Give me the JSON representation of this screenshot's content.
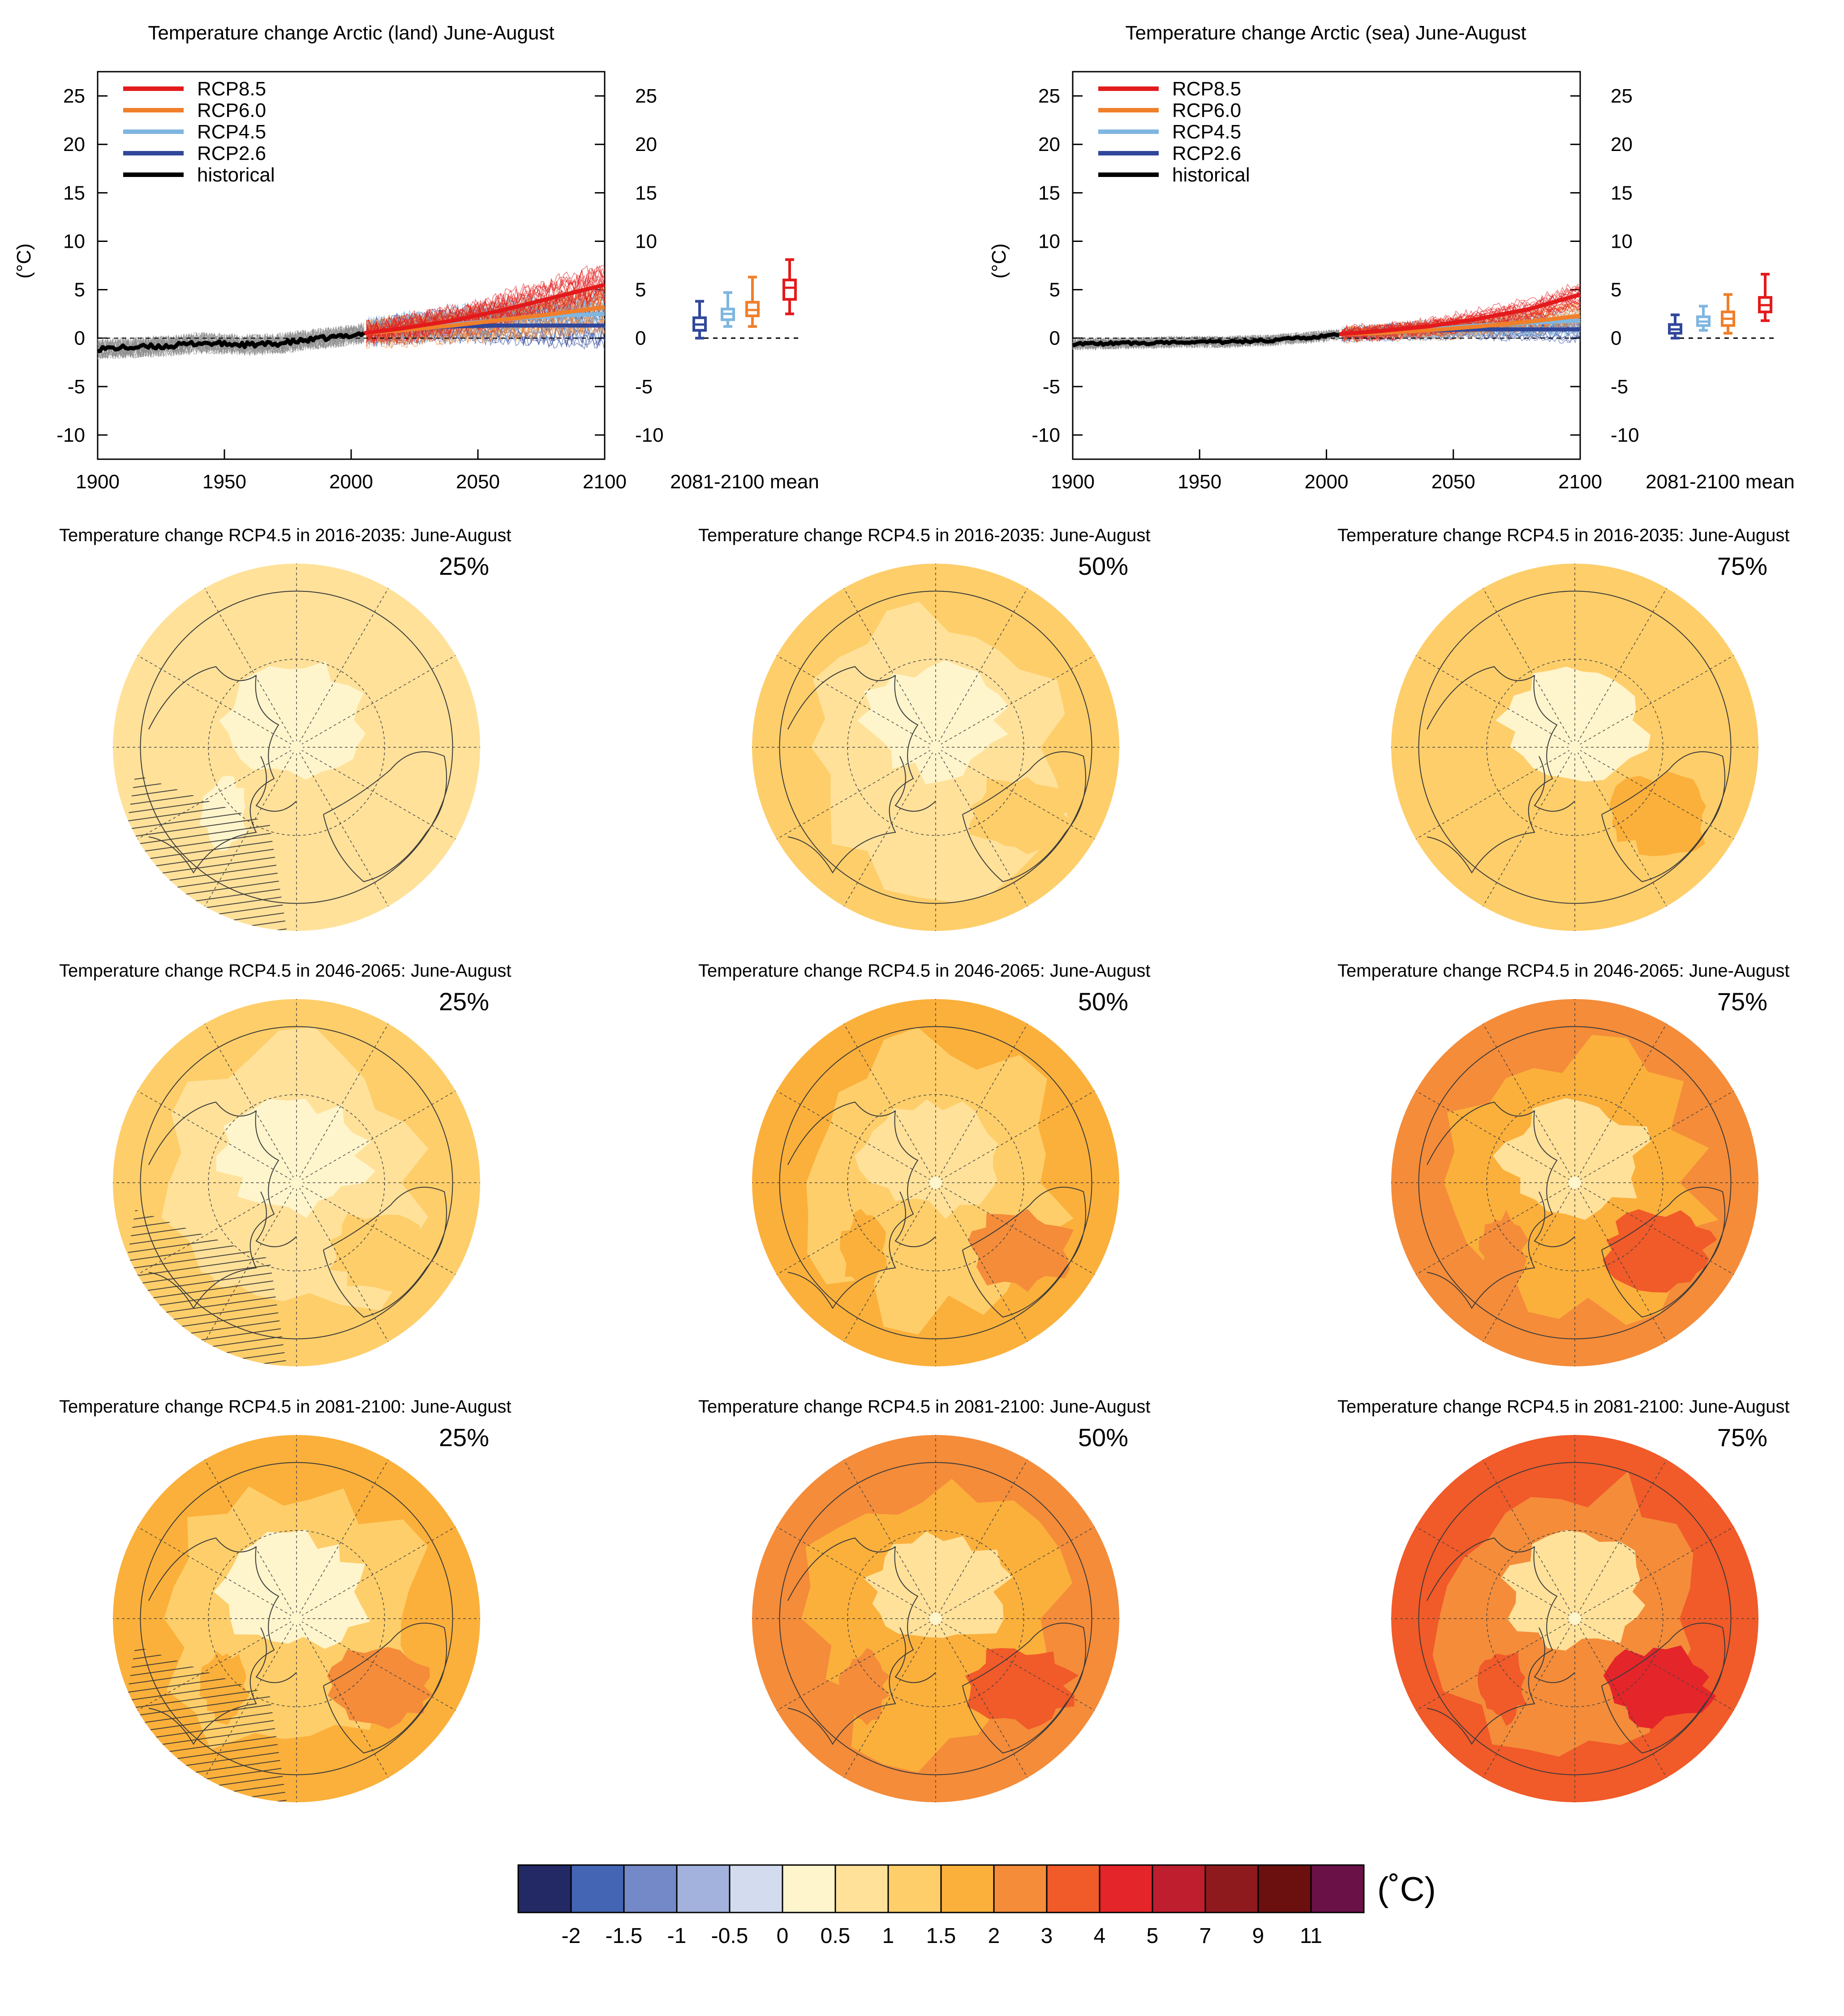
{
  "colors": {
    "rcp85": "#e31a1c",
    "rcp60": "#f07f2a",
    "rcp45": "#7fb6e0",
    "rcp26": "#31479a",
    "historical": "#000000",
    "ensemble_historical": "#8c8c8c",
    "coast": "#3a3a3a"
  },
  "chart_data": [
    {
      "type": "line",
      "title": "Temperature change Arctic (land) June-August",
      "ylabel": "(°C)",
      "xlim": [
        1900,
        2100
      ],
      "ylim": [
        -12.5,
        27.5
      ],
      "x_ticks": [
        "1900",
        "1950",
        "2000",
        "2050",
        "2100"
      ],
      "y_ticks": [
        "25",
        "20",
        "15",
        "10",
        "5",
        "0",
        "-5",
        "-10"
      ],
      "legend_position": "top-left",
      "legend": [
        "RCP8.5",
        "RCP6.0",
        "RCP4.5",
        "RCP2.6",
        "historical"
      ],
      "series": [
        {
          "name": "historical",
          "x": [
            1900,
            1910,
            1920,
            1930,
            1940,
            1950,
            1960,
            1970,
            1980,
            1990,
            2000,
            2005
          ],
          "y": [
            -1.1,
            -1.0,
            -0.9,
            -0.8,
            -0.5,
            -0.6,
            -0.7,
            -0.6,
            -0.3,
            0.0,
            0.3,
            0.5
          ]
        },
        {
          "name": "RCP2.6",
          "x": [
            2005,
            2020,
            2040,
            2060,
            2080,
            2100
          ],
          "y": [
            0.5,
            0.9,
            1.2,
            1.3,
            1.3,
            1.3
          ]
        },
        {
          "name": "RCP4.5",
          "x": [
            2005,
            2020,
            2040,
            2060,
            2080,
            2100
          ],
          "y": [
            0.5,
            0.9,
            1.4,
            1.9,
            2.3,
            2.5
          ]
        },
        {
          "name": "RCP6.0",
          "x": [
            2005,
            2020,
            2040,
            2060,
            2080,
            2100
          ],
          "y": [
            0.5,
            0.8,
            1.3,
            1.9,
            2.5,
            3.2
          ]
        },
        {
          "name": "RCP8.5",
          "x": [
            2005,
            2020,
            2040,
            2060,
            2080,
            2100
          ],
          "y": [
            0.5,
            1.0,
            1.8,
            2.9,
            4.2,
            5.5
          ]
        }
      ],
      "box_label": "2081-2100 mean",
      "boxes": [
        {
          "name": "RCP2.6",
          "whisker_low": 0.0,
          "q1": 0.8,
          "median": 1.4,
          "q3": 2.1,
          "whisker_high": 3.8
        },
        {
          "name": "RCP4.5",
          "whisker_low": 1.2,
          "q1": 1.9,
          "median": 2.5,
          "q3": 3.0,
          "whisker_high": 4.7
        },
        {
          "name": "RCP6.0",
          "whisker_low": 1.2,
          "q1": 2.3,
          "median": 2.9,
          "q3": 3.7,
          "whisker_high": 6.3
        },
        {
          "name": "RCP8.5",
          "whisker_low": 2.5,
          "q1": 4.0,
          "median": 5.2,
          "q3": 6.0,
          "whisker_high": 8.1
        }
      ]
    },
    {
      "type": "line",
      "title": "Temperature change Arctic (sea) June-August",
      "ylabel": "(°C)",
      "xlim": [
        1900,
        2100
      ],
      "ylim": [
        -12.5,
        27.5
      ],
      "x_ticks": [
        "1900",
        "1950",
        "2000",
        "2050",
        "2100"
      ],
      "y_ticks": [
        "25",
        "20",
        "15",
        "10",
        "5",
        "0",
        "-5",
        "-10"
      ],
      "legend_position": "top-left",
      "legend": [
        "RCP8.5",
        "RCP6.0",
        "RCP4.5",
        "RCP2.6",
        "historical"
      ],
      "series": [
        {
          "name": "historical",
          "x": [
            1900,
            1910,
            1920,
            1930,
            1940,
            1950,
            1960,
            1970,
            1980,
            1990,
            2000,
            2005
          ],
          "y": [
            -0.6,
            -0.6,
            -0.5,
            -0.5,
            -0.4,
            -0.4,
            -0.4,
            -0.3,
            -0.2,
            0.0,
            0.2,
            0.4
          ]
        },
        {
          "name": "RCP2.6",
          "x": [
            2005,
            2020,
            2040,
            2060,
            2080,
            2100
          ],
          "y": [
            0.4,
            0.6,
            0.8,
            0.9,
            0.9,
            0.9
          ]
        },
        {
          "name": "RCP4.5",
          "x": [
            2005,
            2020,
            2040,
            2060,
            2080,
            2100
          ],
          "y": [
            0.4,
            0.6,
            0.9,
            1.3,
            1.6,
            1.8
          ]
        },
        {
          "name": "RCP6.0",
          "x": [
            2005,
            2020,
            2040,
            2060,
            2080,
            2100
          ],
          "y": [
            0.4,
            0.5,
            0.8,
            1.2,
            1.7,
            2.3
          ]
        },
        {
          "name": "RCP8.5",
          "x": [
            2005,
            2020,
            2040,
            2060,
            2080,
            2100
          ],
          "y": [
            0.4,
            0.7,
            1.2,
            2.0,
            3.0,
            4.5
          ]
        }
      ],
      "box_label": "2081-2100 mean",
      "boxes": [
        {
          "name": "RCP2.6",
          "whisker_low": 0.0,
          "q1": 0.5,
          "median": 0.9,
          "q3": 1.4,
          "whisker_high": 2.4
        },
        {
          "name": "RCP4.5",
          "whisker_low": 0.8,
          "q1": 1.3,
          "median": 1.7,
          "q3": 2.2,
          "whisker_high": 3.3
        },
        {
          "name": "RCP6.0",
          "whisker_low": 0.5,
          "q1": 1.3,
          "median": 2.0,
          "q3": 2.7,
          "whisker_high": 4.5
        },
        {
          "name": "RCP8.5",
          "whisker_low": 1.8,
          "q1": 2.7,
          "median": 3.4,
          "q3": 4.2,
          "whisker_high": 6.6
        }
      ]
    },
    {
      "type": "heatmap",
      "maps": [
        {
          "title": "Temperature change RCP4.5 in 2016-2035: June-August",
          "percentile": "25%",
          "levels": {
            "outer": 1,
            "mid": 1,
            "inner": 0,
            "hot": 1,
            "pole": 0
          },
          "hatched": true
        },
        {
          "title": "Temperature change RCP4.5 in 2016-2035: June-August",
          "percentile": "50%",
          "levels": {
            "outer": 2,
            "mid": 1,
            "inner": 0,
            "hot": 2,
            "pole": 0
          },
          "hatched": false
        },
        {
          "title": "Temperature change RCP4.5 in 2016-2035: June-August",
          "percentile": "75%",
          "levels": {
            "outer": 2,
            "mid": 2,
            "inner": 0,
            "hot": 3,
            "pole": 0
          },
          "hatched": false
        },
        {
          "title": "Temperature change RCP4.5 in 2046-2065: June-August",
          "percentile": "25%",
          "levels": {
            "outer": 2,
            "mid": 1,
            "inner": 0,
            "hot": 2,
            "pole": 0
          },
          "hatched": true
        },
        {
          "title": "Temperature change RCP4.5 in 2046-2065: June-August",
          "percentile": "50%",
          "levels": {
            "outer": 3,
            "mid": 2,
            "inner": 1,
            "hot": 4,
            "pole": 0
          },
          "hatched": false
        },
        {
          "title": "Temperature change RCP4.5 in 2046-2065: June-August",
          "percentile": "75%",
          "levels": {
            "outer": 4,
            "mid": 3,
            "inner": 1,
            "hot": 5,
            "pole": 0
          },
          "hatched": false
        },
        {
          "title": "Temperature change RCP4.5 in 2081-2100: June-August",
          "percentile": "25%",
          "levels": {
            "outer": 3,
            "mid": 2,
            "inner": 0,
            "hot": 4,
            "pole": 0
          },
          "hatched": true
        },
        {
          "title": "Temperature change RCP4.5 in 2081-2100: June-August",
          "percentile": "50%",
          "levels": {
            "outer": 4,
            "mid": 3,
            "inner": 1,
            "hot": 5,
            "pole": 0
          },
          "hatched": false
        },
        {
          "title": "Temperature change RCP4.5 in 2081-2100: June-August",
          "percentile": "75%",
          "levels": {
            "outer": 5,
            "mid": 4,
            "inner": 1,
            "hot": 6,
            "pole": 0
          },
          "hatched": false
        }
      ],
      "colorbar": {
        "unit": "(˚C)",
        "colors": [
          "#232964",
          "#4465b3",
          "#7489c7",
          "#a3b2dc",
          "#d3dcef",
          "#fff5cc",
          "#ffe19a",
          "#fece6a",
          "#fbb03b",
          "#f48c3a",
          "#f15a29",
          "#e4252a",
          "#be1e2d",
          "#8e1a1e",
          "#6b0f0f",
          "#6a1148"
        ],
        "labels": [
          "-2",
          "-1.5",
          "-1",
          "-0.5",
          "0",
          "0.5",
          "1",
          "1.5",
          "2",
          "3",
          "4",
          "5",
          "7",
          "9",
          "11"
        ]
      }
    }
  ]
}
